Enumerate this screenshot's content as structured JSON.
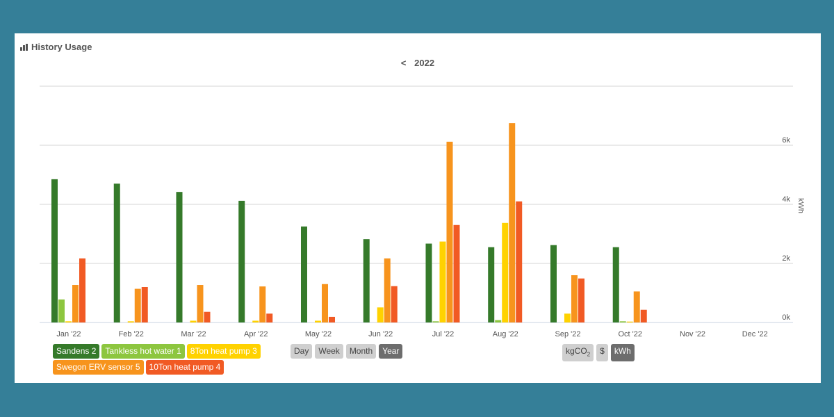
{
  "widget": {
    "title": "History Usage",
    "icon": "bar-chart-icon",
    "nav_prev": "<",
    "year": "2022"
  },
  "time_buttons": [
    {
      "label": "Day",
      "active": false
    },
    {
      "label": "Week",
      "active": false
    },
    {
      "label": "Month",
      "active": false
    },
    {
      "label": "Year",
      "active": true
    }
  ],
  "unit_buttons": [
    {
      "label": "kgCO",
      "sub": "2",
      "active": false
    },
    {
      "label": "$",
      "sub": "",
      "active": false
    },
    {
      "label": "kWh",
      "sub": "",
      "active": true
    }
  ],
  "chart_data": {
    "type": "bar",
    "categories": [
      "Jan '22",
      "Feb '22",
      "Mar '22",
      "Apr '22",
      "May '22",
      "Jun '22",
      "Jul '22",
      "Aug '22",
      "Sep '22",
      "Oct '22",
      "Nov '22",
      "Dec '22"
    ],
    "ylabel": "kWh",
    "ylim": [
      0,
      8000
    ],
    "yticks": [
      0,
      2000,
      4000,
      6000
    ],
    "ytick_labels": [
      "0k",
      "2k",
      "4k",
      "6k"
    ],
    "y_axis_side": "right",
    "grid": true,
    "legend_position": "bottom-left",
    "series": [
      {
        "name": "Sandens 2",
        "color": "#357a2a",
        "values": [
          4850,
          4700,
          4420,
          4120,
          3250,
          2820,
          2670,
          2550,
          2620,
          2550,
          0,
          0
        ]
      },
      {
        "name": "Tankless hot water 1",
        "color": "#8dc63f",
        "values": [
          780,
          0,
          0,
          0,
          0,
          0,
          40,
          80,
          0,
          40,
          0,
          0
        ]
      },
      {
        "name": "8Ton heat pump 3",
        "color": "#ffd200",
        "values": [
          40,
          40,
          60,
          60,
          60,
          510,
          2740,
          3370,
          300,
          30,
          0,
          0
        ]
      },
      {
        "name": "Swegon ERV sensor 5",
        "color": "#f7941d",
        "values": [
          1270,
          1140,
          1270,
          1220,
          1300,
          2170,
          6120,
          6750,
          1600,
          1050,
          0,
          0
        ]
      },
      {
        "name": "10Ton heat pump 4",
        "color": "#f15a24",
        "values": [
          2170,
          1200,
          360,
          300,
          190,
          1230,
          3300,
          4100,
          1490,
          430,
          0,
          0
        ]
      }
    ]
  }
}
